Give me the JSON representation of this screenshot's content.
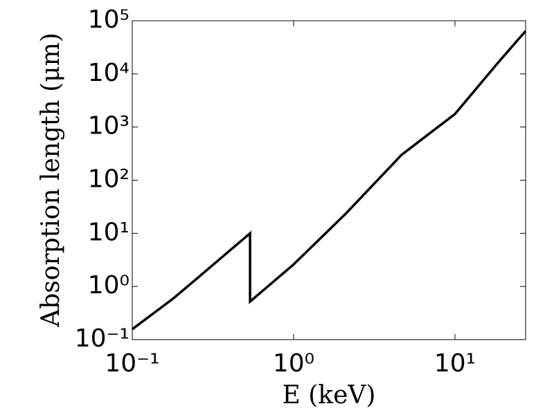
{
  "chart_data": {
    "type": "line",
    "xlabel": "E (keV)",
    "ylabel": "Absorption length (μm)",
    "xscale": "log",
    "yscale": "log",
    "xlim": [
      0.1,
      27.4
    ],
    "ylim": [
      0.1,
      100000
    ],
    "xticks": [
      {
        "value": 0.1,
        "label": "10⁻¹"
      },
      {
        "value": 1,
        "label": "10⁰"
      },
      {
        "value": 10,
        "label": "10¹"
      }
    ],
    "yticks": [
      {
        "value": 0.1,
        "label": "10⁻¹"
      },
      {
        "value": 1,
        "label": "10⁰"
      },
      {
        "value": 10,
        "label": "10¹"
      },
      {
        "value": 100,
        "label": "10²"
      },
      {
        "value": 1000,
        "label": "10³"
      },
      {
        "value": 10000,
        "label": "10⁴"
      },
      {
        "value": 100000,
        "label": "10⁵"
      }
    ],
    "grid": false,
    "series": [
      {
        "color": "#000000",
        "x": [
          0.1,
          0.179,
          0.248,
          0.537,
          0.537,
          1,
          2.12,
          4.67,
          10,
          18.6,
          27.4
        ],
        "values": [
          0.157,
          0.59,
          1.36,
          10,
          0.52,
          2.6,
          24,
          300,
          1760,
          16600,
          64000
        ]
      }
    ]
  }
}
